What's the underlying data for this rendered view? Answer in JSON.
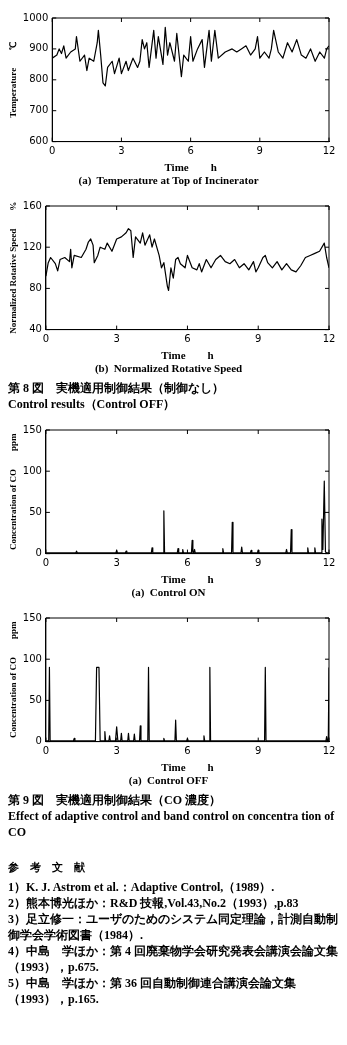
{
  "chart_data": [
    {
      "type": "line",
      "title": "(a)  Temperature at Top of Incinerator",
      "xlabel": "Time　　h",
      "ylabel": "Temperature　　℃",
      "xlim": [
        0,
        12
      ],
      "xticks": [
        0,
        3,
        6,
        9,
        12
      ],
      "ylim": [
        600,
        1000
      ],
      "yticks": [
        600,
        700,
        800,
        900,
        1000
      ],
      "grid": false,
      "legend": false,
      "marker": "none",
      "line_style": "solid",
      "series": [
        {
          "color": "#000000",
          "x": [
            0,
            0.2,
            0.3,
            0.4,
            0.5,
            0.6,
            0.8,
            1.0,
            1.05,
            1.2,
            1.4,
            1.5,
            1.6,
            1.8,
            1.95,
            2.0,
            2.1,
            2.2,
            2.3,
            2.4,
            2.6,
            2.7,
            2.9,
            3.0,
            3.2,
            3.3,
            3.5,
            3.7,
            3.8,
            3.9,
            4.0,
            4.1,
            4.2,
            4.4,
            4.5,
            4.6,
            4.8,
            4.9,
            5.0,
            5.1,
            5.3,
            5.4,
            5.6,
            5.7,
            5.9,
            6.0,
            6.1,
            6.3,
            6.5,
            6.6,
            6.8,
            6.9,
            7.05,
            7.2,
            7.5,
            7.8,
            8.0,
            8.2,
            8.4,
            8.6,
            8.8,
            8.9,
            9.0,
            9.2,
            9.4,
            9.5,
            9.6,
            9.8,
            10.0,
            10.2,
            10.4,
            10.6,
            10.8,
            11.0,
            11.2,
            11.4,
            11.6,
            11.8,
            11.9,
            12
          ],
          "values": [
            870,
            880,
            900,
            885,
            910,
            870,
            890,
            900,
            940,
            860,
            880,
            830,
            870,
            860,
            920,
            960,
            880,
            790,
            780,
            840,
            860,
            820,
            870,
            820,
            860,
            830,
            870,
            840,
            860,
            930,
            900,
            920,
            840,
            960,
            870,
            940,
            850,
            970,
            880,
            920,
            860,
            950,
            810,
            880,
            860,
            940,
            860,
            900,
            930,
            840,
            960,
            860,
            960,
            870,
            890,
            900,
            890,
            900,
            910,
            880,
            900,
            940,
            870,
            890,
            870,
            900,
            960,
            890,
            870,
            920,
            890,
            930,
            880,
            870,
            900,
            860,
            890,
            870,
            900,
            910
          ]
        }
      ]
    },
    {
      "type": "line",
      "title": "(b)  Normalized Rotative Speed",
      "xlabel": "Time　　h",
      "ylabel": "Normalized Rotative Speed　　%",
      "xlim": [
        0,
        12
      ],
      "xticks": [
        0,
        3,
        6,
        9,
        12
      ],
      "ylim": [
        40,
        160
      ],
      "yticks": [
        40,
        80,
        120,
        160
      ],
      "grid": false,
      "legend": false,
      "marker": "none",
      "line_style": "solid",
      "annotations": [
        "第 8 図　実機適用制御結果（制御なし）",
        "Control results（Control OFF）"
      ],
      "series": [
        {
          "color": "#000000",
          "x": [
            0,
            0.1,
            0.2,
            0.4,
            0.5,
            0.6,
            0.8,
            1.0,
            1.05,
            1.1,
            1.2,
            1.5,
            1.7,
            1.8,
            1.9,
            2.0,
            2.05,
            2.2,
            2.3,
            2.5,
            2.6,
            2.8,
            3.0,
            3.2,
            3.4,
            3.5,
            3.6,
            3.7,
            3.8,
            4.0,
            4.1,
            4.2,
            4.4,
            4.5,
            4.6,
            4.8,
            4.9,
            5.0,
            5.15,
            5.2,
            5.3,
            5.4,
            5.5,
            5.6,
            5.7,
            5.9,
            6.0,
            6.2,
            6.4,
            6.5,
            6.6,
            6.8,
            7.0,
            7.2,
            7.4,
            7.6,
            7.8,
            8.0,
            8.2,
            8.4,
            8.6,
            8.8,
            8.9,
            9.0,
            9.2,
            9.3,
            9.4,
            9.6,
            9.8,
            10.0,
            10.2,
            10.4,
            10.6,
            10.8,
            11.0,
            11.2,
            11.4,
            11.6,
            11.8,
            11.9,
            12
          ],
          "values": [
            92,
            105,
            110,
            104,
            97,
            108,
            110,
            106,
            118,
            100,
            112,
            110,
            118,
            125,
            128,
            122,
            105,
            112,
            120,
            118,
            124,
            116,
            128,
            130,
            134,
            138,
            136,
            110,
            130,
            124,
            134,
            122,
            132,
            120,
            128,
            112,
            100,
            105,
            82,
            78,
            100,
            90,
            108,
            110,
            104,
            100,
            112,
            100,
            98,
            104,
            96,
            108,
            100,
            108,
            112,
            106,
            104,
            108,
            100,
            104,
            98,
            106,
            96,
            100,
            110,
            112,
            105,
            100,
            106,
            98,
            104,
            98,
            96,
            102,
            110,
            112,
            114,
            116,
            124,
            110,
            100
          ]
        }
      ]
    },
    {
      "type": "line",
      "title": "(a)  Control ON",
      "xlabel": "Time　　h",
      "ylabel": "Concentration of CO　　ppm",
      "xlim": [
        0,
        12
      ],
      "xticks": [
        0,
        3,
        6,
        9,
        12
      ],
      "ylim": [
        0,
        150
      ],
      "yticks": [
        0,
        50,
        100,
        150
      ],
      "grid": false,
      "legend": false,
      "marker": "none",
      "line_style": "solid",
      "series": [
        {
          "color": "#000000",
          "x": [
            0,
            1.27,
            1.3,
            1.33,
            2.97,
            3.0,
            3.03,
            3.37,
            3.4,
            3.43,
            4.47,
            4.5,
            4.53,
            4.97,
            5.0,
            5.03,
            5.57,
            5.6,
            5.63,
            5.77,
            5.8,
            5.83,
            6.17,
            6.2,
            6.23,
            6.27,
            6.3,
            6.33,
            7.47,
            7.5,
            7.53,
            7.87,
            7.9,
            7.93,
            8.27,
            8.3,
            8.33,
            8.67,
            8.7,
            8.73,
            8.97,
            9.0,
            9.03,
            10.17,
            10.2,
            10.23,
            10.37,
            10.4,
            10.43,
            11.07,
            11.1,
            11.13,
            11.37,
            11.4,
            11.43,
            11.67,
            11.7,
            11.74,
            11.8,
            11.85,
            11.9,
            12
          ],
          "values": [
            1,
            1,
            3,
            1,
            1,
            4,
            1,
            1,
            3,
            1,
            1,
            7,
            1,
            1,
            52,
            1,
            1,
            6,
            1,
            1,
            5,
            1,
            1,
            16,
            1,
            1,
            5,
            1,
            1,
            6,
            1,
            1,
            38,
            1,
            1,
            8,
            1,
            1,
            4,
            1,
            1,
            4,
            1,
            1,
            5,
            1,
            1,
            29,
            1,
            1,
            7,
            1,
            1,
            7,
            1,
            1,
            42,
            5,
            88,
            2,
            1,
            1
          ]
        }
      ]
    },
    {
      "type": "line",
      "title": "(a)  Control OFF",
      "xlabel": "Time　　h",
      "ylabel": "Concentration of CO　　ppm",
      "xlim": [
        0,
        12
      ],
      "xticks": [
        0,
        3,
        6,
        9,
        12
      ],
      "ylim": [
        0,
        150
      ],
      "yticks": [
        0,
        50,
        100,
        150
      ],
      "grid": false,
      "legend": false,
      "marker": "none",
      "line_style": "solid",
      "annotations": [
        "第 9 図　実機適用制御結果（CO 濃度）",
        "Effect of adaptive control and band control on concentra tion of CO"
      ],
      "series": [
        {
          "color": "#000000",
          "x": [
            0,
            0.12,
            0.15,
            0.18,
            1.17,
            1.2,
            1.23,
            2.1,
            2.15,
            2.25,
            2.3,
            2.47,
            2.5,
            2.53,
            2.67,
            2.7,
            2.73,
            2.95,
            3.0,
            3.05,
            3.17,
            3.2,
            3.23,
            3.47,
            3.5,
            3.53,
            3.72,
            3.75,
            3.78,
            3.97,
            4.0,
            4.03,
            4.32,
            4.35,
            4.38,
            4.97,
            5.0,
            5.03,
            5.47,
            5.5,
            5.53,
            5.97,
            6.0,
            6.03,
            6.67,
            6.7,
            6.73,
            6.92,
            6.95,
            6.98,
            9.27,
            9.3,
            9.33,
            11.87,
            11.9,
            11.93,
            11.97,
            12
          ],
          "values": [
            1,
            1,
            90,
            1,
            1,
            4,
            1,
            1,
            90,
            90,
            1,
            1,
            12,
            1,
            1,
            7,
            1,
            1,
            18,
            1,
            1,
            10,
            1,
            1,
            10,
            1,
            1,
            9,
            1,
            1,
            19,
            1,
            1,
            90,
            1,
            1,
            4,
            1,
            1,
            26,
            1,
            1,
            4,
            1,
            1,
            7,
            1,
            1,
            90,
            1,
            1,
            90,
            1,
            1,
            6,
            1,
            1,
            90
          ]
        }
      ]
    },
    {
      "type": "other",
      "title": "参　考　文　献",
      "annotations": [
        "1）K. J. Astrom et al.：Adaptive Control,（1989）.",
        "2）熊本博光ほか：R&D 技報,Vol.43,No.2（1993）,p.83",
        "3）足立修一：ユーザのためのシステム同定理論，計測自動制御学会学術図書（1984）.",
        "4）中島　学ほか：第 4 回廃棄物学会研究発表会講演会論文集（1993），p.675.",
        "5）中島　学ほか：第 36 回自動制御連合講演会論文集（1993），p.165."
      ]
    }
  ]
}
